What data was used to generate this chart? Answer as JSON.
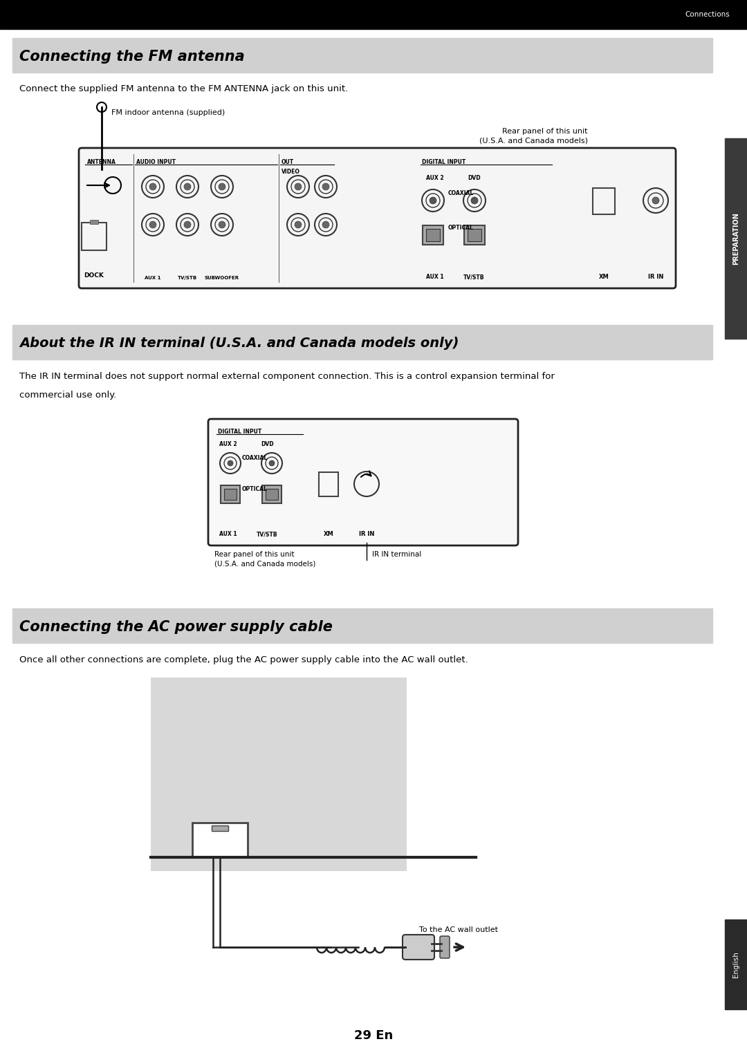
{
  "page_bg": "#ffffff",
  "top_bar_color": "#000000",
  "top_bar_text": "Connections",
  "top_bar_text_color": "#ffffff",
  "section1_title": "Connecting the FM antenna",
  "section1_title_bg": "#d0d0d0",
  "section1_body": "Connect the supplied FM antenna to the FM ANTENNA jack on this unit.",
  "section1_antenna_label": "FM indoor antenna (supplied)",
  "section1_rear_label1": "Rear panel of this unit",
  "section1_rear_label2": "(U.S.A. and Canada models)",
  "section2_title": "About the IR IN terminal (U.S.A. and Canada models only)",
  "section2_title_bg": "#d0d0d0",
  "section2_body1": "The IR IN terminal does not support normal external component connection. This is a control expansion terminal for",
  "section2_body2": "commercial use only.",
  "section2_rear_label1": "Rear panel of this unit",
  "section2_rear_label2": "(U.S.A. and Canada models)",
  "section2_ir_label": "IR IN terminal",
  "section3_title": "Connecting the AC power supply cable",
  "section3_title_bg": "#d0d0d0",
  "section3_body": "Once all other connections are complete, plug the AC power supply cable into the AC wall outlet.",
  "section3_outlet_label": "To the AC wall outlet",
  "side_tab_top": "PREPARATION",
  "side_tab_bottom": "English",
  "page_number": "29 En",
  "diagram_bg": "#d8d8d8",
  "diagram_border": "#333333"
}
